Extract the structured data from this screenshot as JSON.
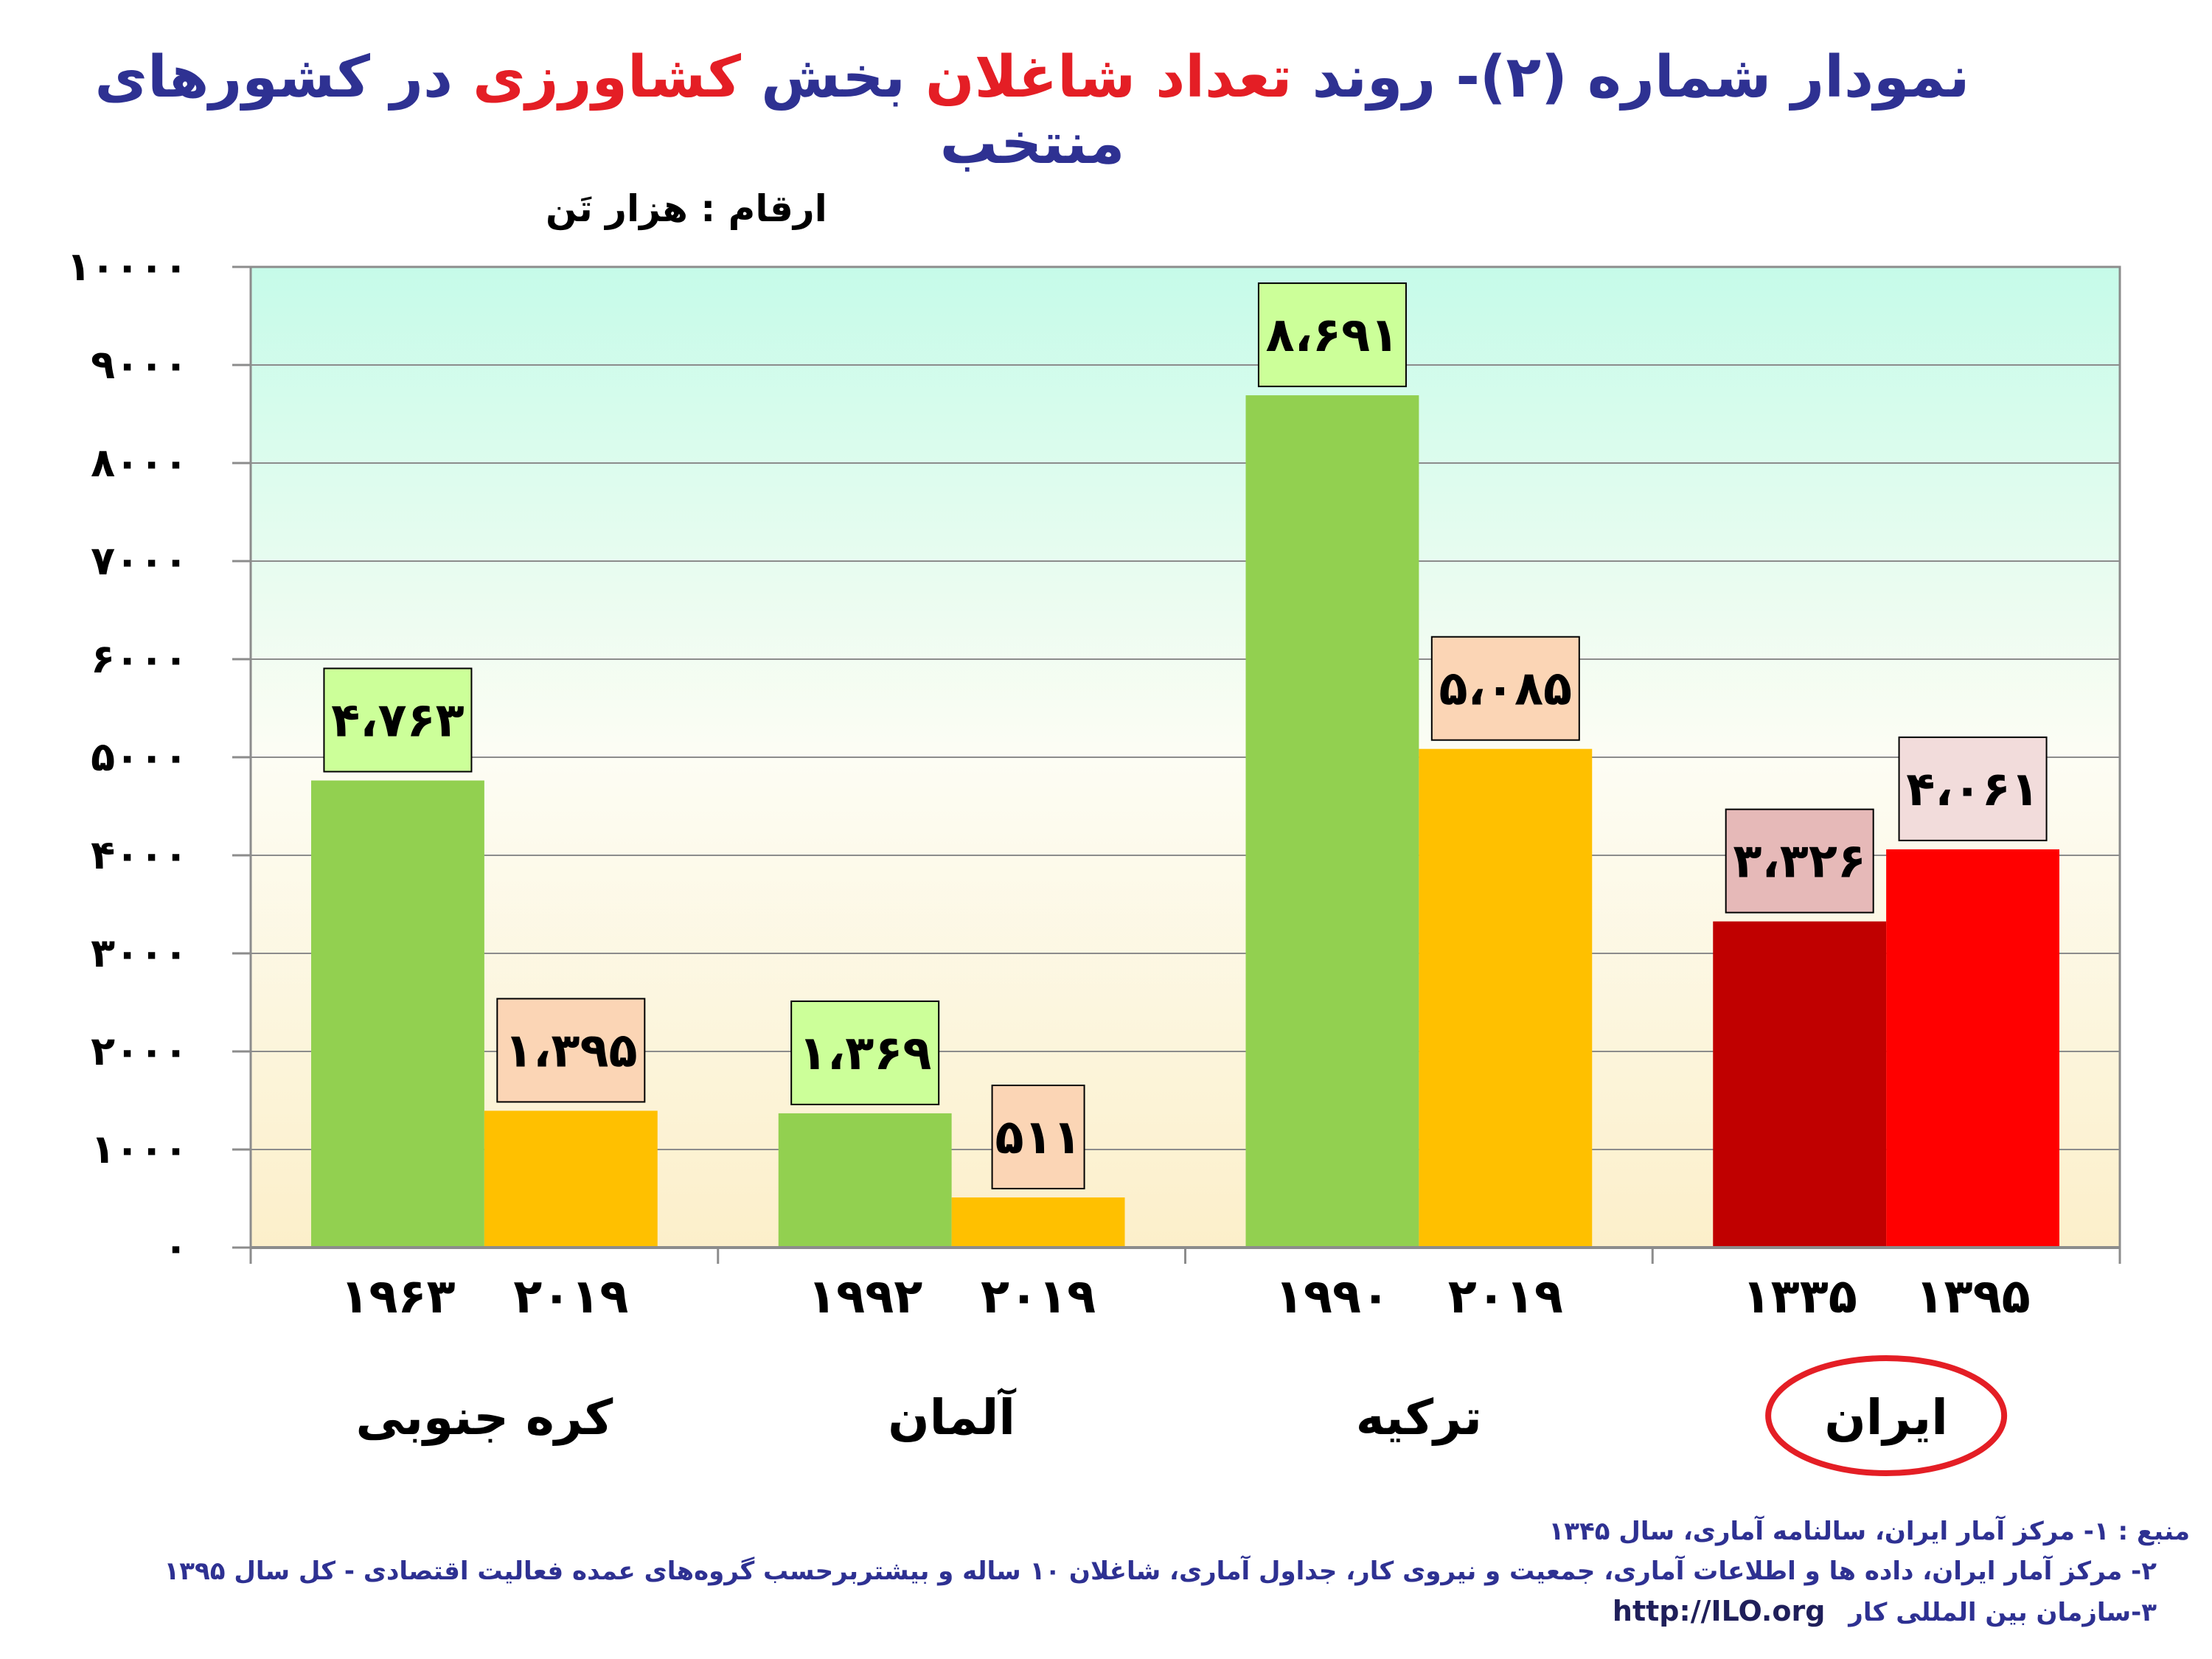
{
  "title": {
    "part1": "نمودار شماره (۲)- روند",
    "part2": "تعداد شاغلان",
    "part3": "بخش",
    "part4": "کشاورزی",
    "part5": "در کشورهای منتخب"
  },
  "unit_label": "ارقام : هزار تَن",
  "colors": {
    "green": "#92d050",
    "orange": "#ffc000",
    "dark_red": "#c00000",
    "red": "#ff0000",
    "label_green": "#ccff99",
    "label_peach": "#fbd5b5",
    "label_pink": "#e6b9b8",
    "label_lightpink": "#f2dcdb",
    "highlight_circle": "#e41e25"
  },
  "chart_data": {
    "type": "bar",
    "ylim": [
      0,
      10000
    ],
    "yticks": [
      "۰",
      "۱۰۰۰",
      "۲۰۰۰",
      "۳۰۰۰",
      "۴۰۰۰",
      "۵۰۰۰",
      "۶۰۰۰",
      "۷۰۰۰",
      "۸۰۰۰",
      "۹۰۰۰",
      "۱۰۰۰۰"
    ],
    "grid": true,
    "groups": [
      {
        "country": "کره جنوبی",
        "highlight": false,
        "bars": [
          {
            "year": "۱۹۶۳",
            "value": 4763,
            "label": "۴،۷۶۳",
            "color": "green",
            "label_color": "label_green"
          },
          {
            "year": "۲۰۱۹",
            "value": 1395,
            "label": "۱،۳۹۵",
            "color": "orange",
            "label_color": "label_peach"
          }
        ]
      },
      {
        "country": "آلمان",
        "highlight": false,
        "bars": [
          {
            "year": "۱۹۹۲",
            "value": 1369,
            "label": "۱،۳۶۹",
            "color": "green",
            "label_color": "label_green"
          },
          {
            "year": "۲۰۱۹",
            "value": 511,
            "label": "۵۱۱",
            "color": "orange",
            "label_color": "label_peach"
          }
        ]
      },
      {
        "country": "ترکیه",
        "highlight": false,
        "bars": [
          {
            "year": "۱۹۹۰",
            "value": 8691,
            "label": "۸،۶۹۱",
            "color": "green",
            "label_color": "label_green"
          },
          {
            "year": "۲۰۱۹",
            "value": 5085,
            "label": "۵،۰۸۵",
            "color": "orange",
            "label_color": "label_peach"
          }
        ]
      },
      {
        "country": "ایران",
        "highlight": true,
        "bars": [
          {
            "year": "۱۳۳۵",
            "value": 3326,
            "label": "۳،۳۲۶",
            "color": "dark_red",
            "label_color": "label_pink"
          },
          {
            "year": "۱۳۹۵",
            "value": 4061,
            "label": "۴،۰۶۱",
            "color": "red",
            "label_color": "label_lightpink"
          }
        ]
      }
    ]
  },
  "sources": {
    "line1": "منبع : ۱- مرکز آمار ایران، سالنامه آماری، سال ۱۳۴۵",
    "line2": "۲- مرکز آمار ایران، داده ها و اطلاعات آماری، جمعیت و نیروی کار، جداول آماری، شاغلان ۱۰ ساله و بیشتربرحسب گروه‌های عمده فعالیت اقتصادی - کل سال ۱۳۹۵",
    "line3": "۳-سازمان بین المللی کار",
    "line3_url": "http://ILO.org"
  }
}
